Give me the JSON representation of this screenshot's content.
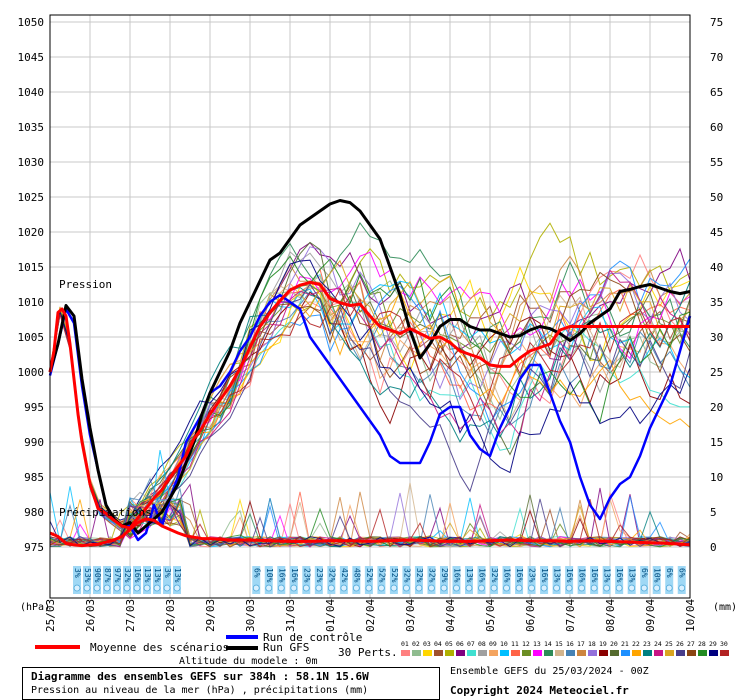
{
  "chart_data": {
    "type": "line",
    "title": "Diagramme des ensembles GEFS sur 384h : 58.1N 15.6W",
    "subtitle": "Pression au niveau de la mer (hPa) , précipitations (mm)",
    "run_label": "Ensemble GEFS du 25/03/2024 - 00Z",
    "copyright": "Copyright 2024 Meteociel.fr",
    "altitude": "Altitude du modele : 0m",
    "left_unit": "(hPa)",
    "right_unit": "(mm)",
    "label_pression": "Pression",
    "label_precip": "Précipitations",
    "grid": true,
    "ylim_left": [
      970,
      1050
    ],
    "ylim_right": [
      -5,
      75
    ],
    "y_ticks_left": [
      "975",
      "980",
      "985",
      "990",
      "995",
      "1000",
      "1005",
      "1010",
      "1015",
      "1020",
      "1025",
      "1030",
      "1035",
      "1040",
      "1045",
      "1050"
    ],
    "y_ticks_right": [
      "0",
      "5",
      "10",
      "15",
      "20",
      "25",
      "30",
      "35",
      "40",
      "45",
      "50",
      "55",
      "60",
      "65",
      "70",
      "75"
    ],
    "x_ticks": [
      "25/03",
      "26/03",
      "27/03",
      "28/03",
      "29/03",
      "30/03",
      "31/03",
      "01/04",
      "02/04",
      "03/04",
      "04/04",
      "05/04",
      "06/04",
      "07/04",
      "08/04",
      "09/04",
      "10/04"
    ],
    "legend": {
      "mean": "Moyenne des scénarios",
      "control": "Run de contrôle",
      "gfs": "Run GFS",
      "perts": "30 Perts.",
      "member_ids": [
        "01",
        "02",
        "03",
        "04",
        "05",
        "06",
        "07",
        "08",
        "09",
        "10",
        "11",
        "12",
        "13",
        "14",
        "15",
        "16",
        "17",
        "18",
        "19",
        "20",
        "21",
        "22",
        "23",
        "24",
        "25",
        "26",
        "27",
        "28",
        "29",
        "30"
      ],
      "member_colors": [
        "#ff8080",
        "#8fbc8f",
        "#ffd700",
        "#a0522d",
        "#b0b000",
        "#800080",
        "#40e0d0",
        "#a0a0a0",
        "#f4a460",
        "#00bfff",
        "#ff6347",
        "#6b8e23",
        "#ff00ff",
        "#2e8b57",
        "#d2b48c",
        "#4682b4",
        "#cd853f",
        "#9370db",
        "#8b0000",
        "#556b2f",
        "#1e90ff",
        "#ffa500",
        "#008080",
        "#c71585",
        "#daa520",
        "#483d8b",
        "#8b4513",
        "#228b22",
        "#000080",
        "#b22222"
      ]
    },
    "series": [
      {
        "name": "Moyenne des scénarios",
        "color": "#ff0000",
        "x": [
          0,
          0.1,
          0.2,
          0.3,
          0.4,
          0.5,
          0.6,
          0.7,
          0.8,
          0.9,
          1,
          1.2,
          1.4,
          1.6,
          1.8,
          2,
          2.2,
          2.4,
          2.6,
          2.8,
          3,
          3.2,
          3.4,
          3.6,
          3.8,
          4,
          4.25,
          4.5,
          4.75,
          5,
          5.25,
          5.5,
          5.75,
          6,
          6.25,
          6.5,
          6.75,
          7,
          7.25,
          7.5,
          7.75,
          8,
          8.25,
          8.5,
          8.75,
          9,
          9.25,
          9.5,
          9.75,
          10,
          10.25,
          10.5,
          10.75,
          11,
          11.25,
          11.5,
          11.75,
          12,
          12.25,
          12.5,
          12.75,
          13,
          13.25,
          13.5,
          13.75,
          14,
          14.25,
          14.5,
          14.75,
          15,
          15.25,
          15.5,
          15.75,
          16
        ],
        "y": [
          1000,
          1003,
          1008.5,
          1009,
          1008,
          1004,
          999,
          994,
          990,
          987,
          984,
          980.5,
          979.8,
          978.8,
          978,
          977.7,
          979.2,
          980.5,
          982,
          983.2,
          985,
          986.5,
          988,
          990.5,
          992,
          994,
          996,
          998,
          1000.5,
          1003.5,
          1006.5,
          1008.5,
          1010.2,
          1011.7,
          1012.4,
          1012.8,
          1012.5,
          1010.5,
          1009.9,
          1009.5,
          1009.7,
          1008,
          1006.5,
          1006,
          1005.5,
          1006.2,
          1005.5,
          1004.8,
          1005,
          1004.2,
          1003,
          1002.5,
          1002,
          1001,
          1000.8,
          1000.8,
          1002,
          1003,
          1003.5,
          1004,
          1006,
          1006.5,
          1006.5,
          1006.5,
          1006.5,
          1006.5,
          1006.5,
          1006.5,
          1006.5,
          1006.5,
          1006.5,
          1006.5,
          1006.5,
          1006.5
        ]
      },
      {
        "name": "Run de contrôle",
        "color": "#0000ff",
        "x": [
          0,
          0.2,
          0.4,
          0.6,
          0.8,
          1,
          1.2,
          1.4,
          1.6,
          1.8,
          2,
          2.2,
          2.4,
          2.6,
          2.8,
          3,
          3.2,
          3.4,
          3.6,
          3.8,
          4,
          4.25,
          4.5,
          4.75,
          5,
          5.25,
          5.5,
          5.75,
          6,
          6.25,
          6.5,
          6.75,
          7,
          7.25,
          7.5,
          7.75,
          8,
          8.25,
          8.5,
          8.75,
          9,
          9.25,
          9.5,
          9.75,
          10,
          10.25,
          10.5,
          10.75,
          11,
          11.25,
          11.5,
          11.75,
          12,
          12.25,
          12.5,
          12.75,
          13,
          13.25,
          13.5,
          13.75,
          14,
          14.25,
          14.5,
          14.75,
          15,
          15.25,
          15.5,
          15.75,
          16
        ],
        "y": [
          999.5,
          1004,
          1009,
          1007,
          998,
          991,
          986,
          981,
          979,
          978,
          978,
          976,
          977,
          981,
          978,
          982,
          985,
          990,
          992,
          994,
          997,
          998,
          1000,
          1003,
          1005,
          1008,
          1010,
          1011,
          1010,
          1009,
          1005,
          1003,
          1001,
          999,
          997,
          995,
          993,
          991,
          988,
          987,
          987,
          987,
          990,
          994,
          995,
          995,
          991,
          989,
          988,
          992,
          995,
          999,
          1001,
          1001,
          997,
          993,
          990,
          985,
          981,
          979,
          982,
          984,
          985,
          988,
          992,
          995,
          998,
          1003,
          1008
        ]
      },
      {
        "name": "Run GFS",
        "color": "#000000",
        "x": [
          0,
          0.2,
          0.4,
          0.6,
          0.8,
          1,
          1.2,
          1.4,
          1.6,
          1.8,
          2,
          2.2,
          2.4,
          2.6,
          2.8,
          3,
          3.2,
          3.4,
          3.6,
          3.8,
          4,
          4.25,
          4.5,
          4.75,
          5,
          5.25,
          5.5,
          5.75,
          6,
          6.25,
          6.5,
          6.75,
          7,
          7.25,
          7.5,
          7.75,
          8,
          8.25,
          8.5,
          8.75,
          9,
          9.25,
          9.5,
          9.75,
          10,
          10.25,
          10.5,
          10.75,
          11,
          11.25,
          11.5,
          11.75,
          12,
          12.25,
          12.5,
          12.75,
          13,
          13.25,
          13.5,
          13.75,
          14,
          14.25,
          14.5,
          14.75,
          15,
          15.25,
          15.5,
          15.75,
          16
        ],
        "y": [
          1000,
          1004,
          1009.5,
          1008,
          999,
          992,
          986,
          981,
          979,
          978,
          978.5,
          977,
          978,
          979,
          980,
          982,
          984,
          987,
          990,
          994,
          997,
          1000,
          1003,
          1007,
          1010,
          1013,
          1016,
          1017,
          1019,
          1021,
          1022,
          1023,
          1024,
          1024.5,
          1024.2,
          1023,
          1021,
          1019,
          1015,
          1011,
          1006,
          1002,
          1004,
          1006.5,
          1007.5,
          1007.5,
          1006.5,
          1006,
          1006,
          1005.5,
          1005,
          1005.2,
          1006,
          1006.5,
          1006.2,
          1005.5,
          1004.5,
          1005.5,
          1007,
          1008,
          1009,
          1011.5,
          1011.8,
          1012.2,
          1012.5,
          1012,
          1011.5,
          1011.2,
          1011.5
        ]
      },
      {
        "name": "Précipitations (moyenne)",
        "color": "#ff0000",
        "axis": "right",
        "x": [
          0,
          0.2,
          0.4,
          0.6,
          0.8,
          1,
          1.2,
          1.4,
          1.6,
          1.8,
          2,
          2.2,
          2.4,
          2.6,
          2.8,
          3,
          3.2,
          3.4,
          3.6,
          3.8,
          4,
          4.5,
          5,
          5.5,
          6,
          6.5,
          7,
          7.5,
          8,
          8.5,
          9,
          9.5,
          10,
          10.5,
          11,
          11.5,
          12,
          12.5,
          13,
          13.5,
          14,
          14.5,
          15,
          15.5,
          16
        ],
        "y": [
          2,
          1.5,
          0.5,
          0.3,
          0.2,
          0.3,
          0.4,
          0.7,
          1,
          1.5,
          2.5,
          3.5,
          4,
          3.8,
          3,
          2.5,
          2,
          1.6,
          1.4,
          1.2,
          1.2,
          1,
          1,
          0.9,
          0.8,
          0.8,
          0.9,
          0.9,
          0.8,
          0.9,
          1,
          0.9,
          0.8,
          0.8,
          0.9,
          1,
          0.9,
          0.9,
          0.8,
          0.9,
          0.8,
          0.7,
          0.6,
          0.5,
          0.3
        ]
      }
    ],
    "precip_percent_row1": [
      "3%",
      "53%",
      "90%",
      "87%",
      "97%",
      "32%",
      "16%",
      "13%",
      "13%",
      "3%",
      "13%"
    ],
    "precip_percent_row2": [
      "6%",
      "10%",
      "16%",
      "16%",
      "23%",
      "23%",
      "32%",
      "42%",
      "48%",
      "52%",
      "52%",
      "52%",
      "32%",
      "32%",
      "32%",
      "29%",
      "16%",
      "13%",
      "16%",
      "32%",
      "16%",
      "16%",
      "23%",
      "16%",
      "13%",
      "16%",
      "16%",
      "16%",
      "13%",
      "16%",
      "13%",
      "6%",
      "10%",
      "6%",
      "6%"
    ]
  }
}
